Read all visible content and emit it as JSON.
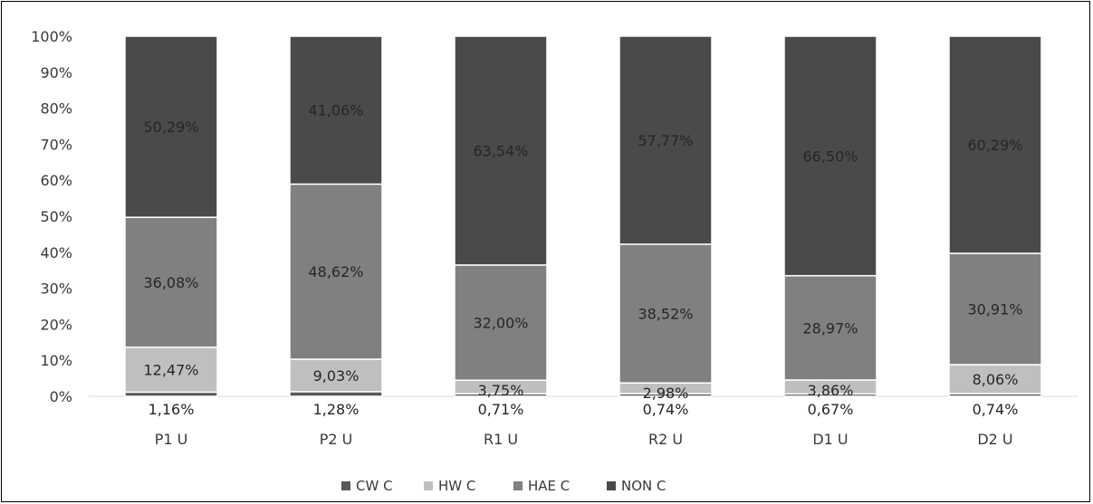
{
  "chart_data": {
    "type": "bar",
    "stacked": true,
    "percent": true,
    "categories": [
      "P1 U",
      "P2 U",
      "R1 U",
      "R2 U",
      "D1 U",
      "D2 U"
    ],
    "ylim": [
      0,
      100
    ],
    "y_ticks": [
      "0%",
      "10%",
      "20%",
      "30%",
      "40%",
      "50%",
      "60%",
      "70%",
      "80%",
      "90%",
      "100%"
    ],
    "legend_position": "bottom",
    "grid": false,
    "series": [
      {
        "name": "CW C",
        "color": "#595959",
        "values": [
          1.16,
          1.28,
          0.71,
          0.74,
          0.67,
          0.74
        ],
        "labels": [
          "1,16%",
          "1,28%",
          "0,71%",
          "0,74%",
          "0,67%",
          "0,74%"
        ]
      },
      {
        "name": "HW C",
        "color": "#bfbfbf",
        "values": [
          12.47,
          9.03,
          3.75,
          2.98,
          3.86,
          8.06
        ],
        "labels": [
          "12,47%",
          "9,03%",
          "3,75%",
          "2,98%",
          "3,86%",
          "8,06%"
        ]
      },
      {
        "name": "HAE C",
        "color": "#808080",
        "values": [
          36.08,
          48.62,
          32.0,
          38.52,
          28.97,
          30.91
        ],
        "labels": [
          "36,08%",
          "48,62%",
          "32,00%",
          "38,52%",
          "28,97%",
          "30,91%"
        ]
      },
      {
        "name": "NON C",
        "color": "#4a4a4a",
        "values": [
          50.29,
          41.06,
          63.54,
          57.77,
          66.5,
          60.29
        ],
        "labels": [
          "50,29%",
          "41,06%",
          "63,54%",
          "57,77%",
          "66,50%",
          "60,29%"
        ]
      }
    ]
  }
}
